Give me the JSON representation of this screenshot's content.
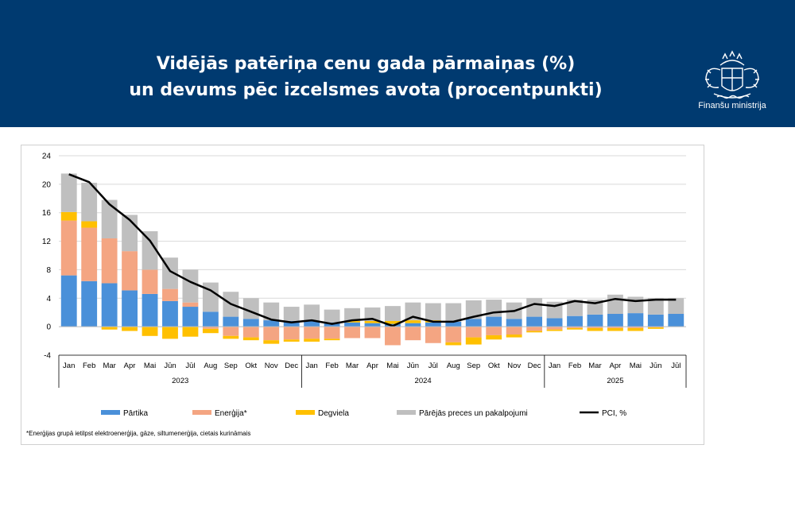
{
  "header": {
    "title_line1": "Vidējās patēriņa cenu gada pārmaiņas (%)",
    "title_line2": "un devums pēc izcelsmes avota (procentpunkti)",
    "ministry": "Finanšu ministrija",
    "logo_icon": "latvia-coat-of-arms-icon"
  },
  "footnote": "*Enerģijas grupā ietilpst elektroenerģija, gāze, siltumenerģija, cietais kurināmais",
  "chart_data": {
    "type": "bar",
    "stacked": true,
    "yticks": [
      -4,
      0,
      4,
      8,
      12,
      16,
      20,
      24
    ],
    "ylim": [
      -4,
      24
    ],
    "grid": true,
    "legend_position": "bottom",
    "categories": [
      "Jan",
      "Feb",
      "Mar",
      "Apr",
      "Mai",
      "Jūn",
      "Jūl",
      "Aug",
      "Sep",
      "Okt",
      "Nov",
      "Dec",
      "Jan",
      "Feb",
      "Mar",
      "Apr",
      "Mai",
      "Jūn",
      "Jūl",
      "Aug",
      "Sep",
      "Okt",
      "Nov",
      "Dec",
      "Jan",
      "Feb",
      "Mar",
      "Apr",
      "Mai",
      "Jūn",
      "Jūl"
    ],
    "years": [
      {
        "label": "2023",
        "start": 0,
        "end": 11
      },
      {
        "label": "2024",
        "start": 12,
        "end": 23
      },
      {
        "label": "2025",
        "start": 24,
        "end": 30
      }
    ],
    "series": [
      {
        "name": "Pārtika",
        "kind": "bar",
        "color": "#4a90d9",
        "values": [
          7.2,
          6.4,
          6.1,
          5.1,
          4.6,
          3.6,
          2.8,
          2.1,
          1.4,
          1.1,
          0.9,
          0.8,
          0.8,
          0.6,
          0.6,
          0.5,
          0.4,
          0.5,
          0.6,
          0.7,
          1.1,
          1.4,
          1.1,
          1.4,
          1.2,
          1.5,
          1.7,
          1.8,
          1.9,
          1.7,
          1.8
        ]
      },
      {
        "name": "Enerģija*",
        "kind": "bar",
        "color": "#f4a582",
        "values": [
          7.7,
          7.5,
          6.3,
          5.5,
          3.4,
          1.7,
          0.6,
          -0.3,
          -1.3,
          -1.5,
          -1.9,
          -1.8,
          -1.7,
          -1.7,
          -1.6,
          -1.6,
          -2.6,
          -1.9,
          -2.3,
          -2.2,
          -1.5,
          -1.2,
          -1.1,
          -0.6,
          -0.4,
          -0.2,
          -0.2,
          -0.2,
          -0.2,
          -0.1,
          0.0
        ]
      },
      {
        "name": "Degviela",
        "kind": "bar",
        "color": "#ffc000",
        "values": [
          1.2,
          0.9,
          -0.4,
          -0.6,
          -1.3,
          -1.7,
          -1.4,
          -0.6,
          -0.4,
          -0.4,
          -0.5,
          -0.3,
          -0.4,
          -0.2,
          0.2,
          0.3,
          0.4,
          0.4,
          0.3,
          -0.4,
          -1.0,
          -0.6,
          -0.4,
          -0.2,
          -0.2,
          -0.2,
          -0.4,
          -0.4,
          -0.4,
          -0.2,
          0.0
        ]
      },
      {
        "name": "Pārējās preces un pakalpojumi",
        "kind": "bar",
        "color": "#bfbfbf",
        "values": [
          5.4,
          5.4,
          5.4,
          5.1,
          5.4,
          4.4,
          4.6,
          4.1,
          3.5,
          2.9,
          2.5,
          2.0,
          2.3,
          1.8,
          1.8,
          1.9,
          2.1,
          2.5,
          2.4,
          2.6,
          2.6,
          2.4,
          2.3,
          2.6,
          2.3,
          2.3,
          2.1,
          2.7,
          2.3,
          2.3,
          2.2
        ]
      },
      {
        "name": "PCI, %",
        "kind": "line",
        "color": "#000000",
        "values": [
          21.4,
          20.3,
          17.2,
          15.0,
          12.1,
          7.8,
          6.3,
          5.1,
          3.2,
          2.1,
          1.0,
          0.6,
          0.9,
          0.4,
          0.9,
          1.1,
          0.1,
          1.4,
          0.7,
          0.7,
          1.4,
          2.0,
          2.2,
          3.2,
          2.9,
          3.6,
          3.3,
          3.9,
          3.6,
          3.8,
          3.8
        ]
      }
    ]
  }
}
